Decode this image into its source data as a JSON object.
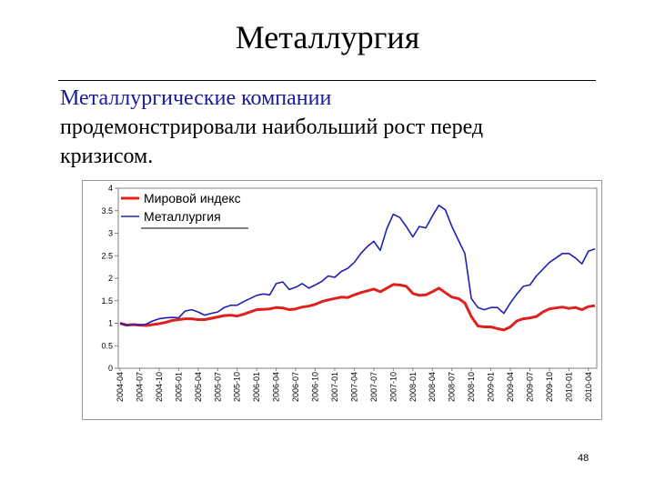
{
  "slide": {
    "title": "Металлургия",
    "text_line1": "Металлургические компании",
    "text_line2": "продемонстрировали наибольший рост перед",
    "text_line3": "кризисом.",
    "page_number": "48"
  },
  "colors": {
    "world": "#e02020",
    "metal": "#2020b0",
    "title_text": "#1a1a99"
  },
  "chart_data": {
    "type": "line",
    "title": "",
    "xlabel": "",
    "ylabel": "",
    "ylim": [
      0,
      4
    ],
    "yticks": [
      "0",
      "0.5",
      "1",
      "1.5",
      "2",
      "2.5",
      "3",
      "3.5",
      "4"
    ],
    "grid": false,
    "legend_position": "top-left",
    "x_labels": [
      "2004-04",
      "2004-07",
      "2004-10",
      "2005-01",
      "2005-04",
      "2005-07",
      "2005-10",
      "2006-01",
      "2006-04",
      "2006-07",
      "2006-10",
      "2007-01",
      "2007-04",
      "2007-07",
      "2007-10",
      "2008-01",
      "2008-04",
      "2008-07",
      "2008-10",
      "2009-01",
      "2009-04",
      "2009-07",
      "2009-10",
      "2010-01",
      "2010-04"
    ],
    "x": [
      "2004-04",
      "2004-05",
      "2004-06",
      "2004-07",
      "2004-08",
      "2004-09",
      "2004-10",
      "2004-11",
      "2004-12",
      "2005-01",
      "2005-02",
      "2005-03",
      "2005-04",
      "2005-05",
      "2005-06",
      "2005-07",
      "2005-08",
      "2005-09",
      "2005-10",
      "2005-11",
      "2005-12",
      "2006-01",
      "2006-02",
      "2006-03",
      "2006-04",
      "2006-05",
      "2006-06",
      "2006-07",
      "2006-08",
      "2006-09",
      "2006-10",
      "2006-11",
      "2006-12",
      "2007-01",
      "2007-02",
      "2007-03",
      "2007-04",
      "2007-05",
      "2007-06",
      "2007-07",
      "2007-08",
      "2007-09",
      "2007-10",
      "2007-11",
      "2007-12",
      "2008-01",
      "2008-02",
      "2008-03",
      "2008-04",
      "2008-05",
      "2008-06",
      "2008-07",
      "2008-08",
      "2008-09",
      "2008-10",
      "2008-11",
      "2008-12",
      "2009-01",
      "2009-02",
      "2009-03",
      "2009-04",
      "2009-05",
      "2009-06",
      "2009-07",
      "2009-08",
      "2009-09",
      "2009-10",
      "2009-11",
      "2009-12",
      "2010-01",
      "2010-02",
      "2010-03",
      "2010-04",
      "2010-05"
    ],
    "series": [
      {
        "name": "Мировой индекс",
        "values": [
          1.0,
          0.96,
          0.97,
          0.96,
          0.95,
          0.97,
          0.99,
          1.02,
          1.06,
          1.08,
          1.1,
          1.1,
          1.08,
          1.08,
          1.11,
          1.14,
          1.17,
          1.18,
          1.16,
          1.2,
          1.25,
          1.3,
          1.31,
          1.32,
          1.35,
          1.34,
          1.3,
          1.32,
          1.36,
          1.38,
          1.42,
          1.48,
          1.52,
          1.55,
          1.58,
          1.57,
          1.63,
          1.68,
          1.72,
          1.76,
          1.7,
          1.78,
          1.86,
          1.85,
          1.82,
          1.66,
          1.62,
          1.63,
          1.7,
          1.78,
          1.68,
          1.58,
          1.55,
          1.45,
          1.15,
          0.94,
          0.92,
          0.92,
          0.88,
          0.85,
          0.92,
          1.05,
          1.1,
          1.12,
          1.15,
          1.25,
          1.32,
          1.34,
          1.36,
          1.33,
          1.35,
          1.3,
          1.37,
          1.39
        ]
      },
      {
        "name": "Металлургия",
        "values": [
          1.0,
          0.95,
          0.97,
          0.96,
          0.98,
          1.05,
          1.1,
          1.12,
          1.13,
          1.12,
          1.27,
          1.3,
          1.25,
          1.18,
          1.22,
          1.25,
          1.35,
          1.4,
          1.4,
          1.48,
          1.55,
          1.62,
          1.65,
          1.63,
          1.88,
          1.92,
          1.75,
          1.8,
          1.88,
          1.78,
          1.85,
          1.93,
          2.05,
          2.02,
          2.15,
          2.22,
          2.35,
          2.55,
          2.7,
          2.82,
          2.62,
          3.1,
          3.42,
          3.35,
          3.15,
          2.92,
          3.15,
          3.12,
          3.38,
          3.62,
          3.52,
          3.15,
          2.85,
          2.55,
          1.55,
          1.35,
          1.3,
          1.35,
          1.35,
          1.22,
          1.45,
          1.65,
          1.82,
          1.85,
          2.05,
          2.2,
          2.35,
          2.45,
          2.55,
          2.55,
          2.45,
          2.32,
          2.6,
          2.65
        ]
      }
    ]
  }
}
